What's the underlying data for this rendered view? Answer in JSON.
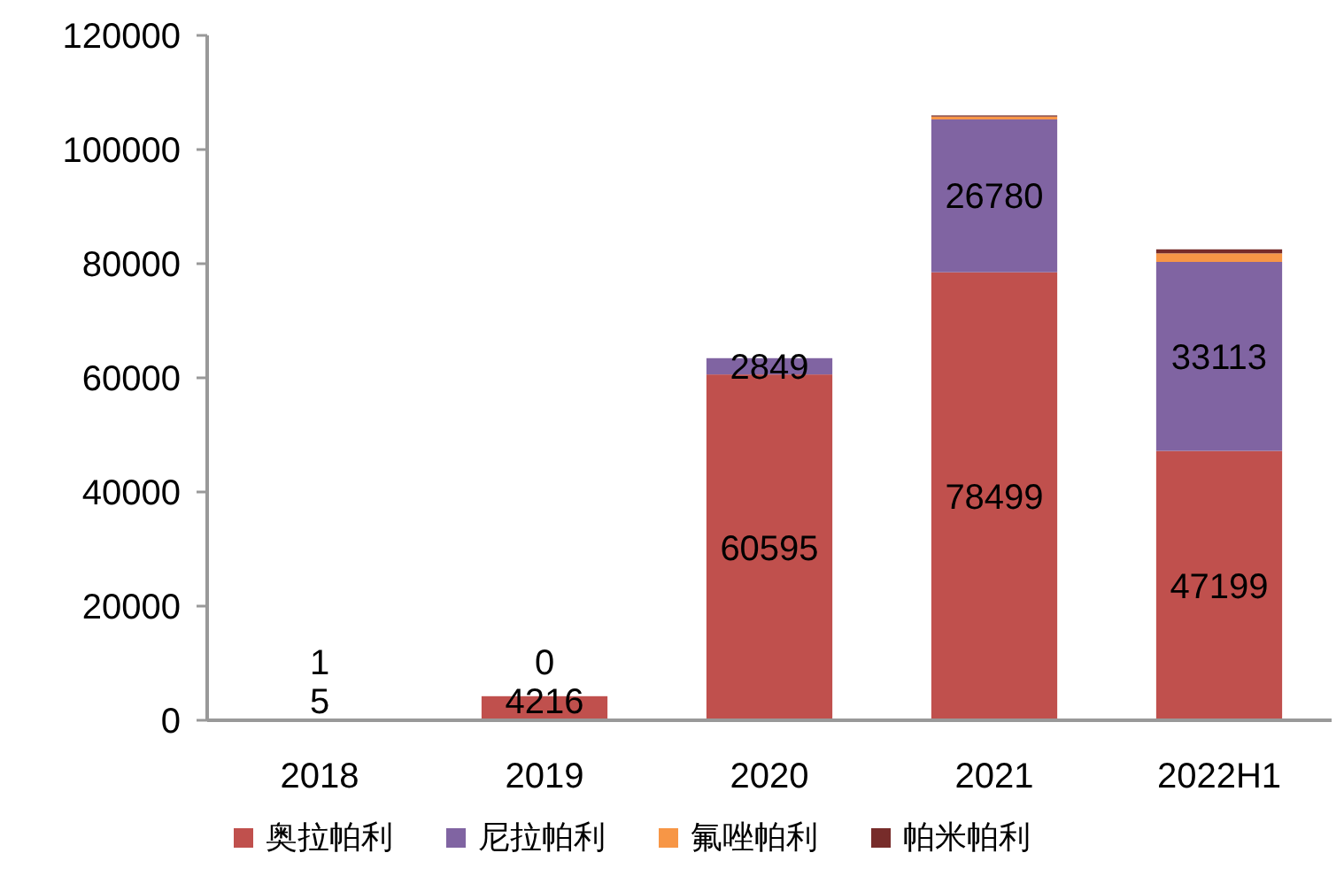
{
  "chart_data": {
    "type": "bar",
    "stacked": true,
    "categories": [
      "2018",
      "2019",
      "2020",
      "2021",
      "2022H1"
    ],
    "series": [
      {
        "name": "奥拉帕利",
        "color": "#c0504d",
        "values": [
          5,
          4216,
          60595,
          78499,
          47199
        ],
        "value_labels": [
          "5",
          "4216",
          "60595",
          "78499",
          "47199"
        ]
      },
      {
        "name": "尼拉帕利",
        "color": "#8064a2",
        "values": [
          1,
          0,
          2849,
          26780,
          33113
        ],
        "value_labels": [
          "1",
          "0",
          "2849",
          "26780",
          "33113"
        ]
      },
      {
        "name": "氟唑帕利",
        "color": "#f79646",
        "values": [
          0,
          0,
          0,
          500,
          1500
        ]
      },
      {
        "name": "帕米帕利",
        "color": "#772c2a",
        "values": [
          0,
          0,
          0,
          200,
          700
        ]
      }
    ],
    "ylim": [
      0,
      120000
    ],
    "yticks": [
      0,
      20000,
      40000,
      60000,
      80000,
      100000,
      120000
    ],
    "grid": false,
    "legend": "bottom"
  }
}
